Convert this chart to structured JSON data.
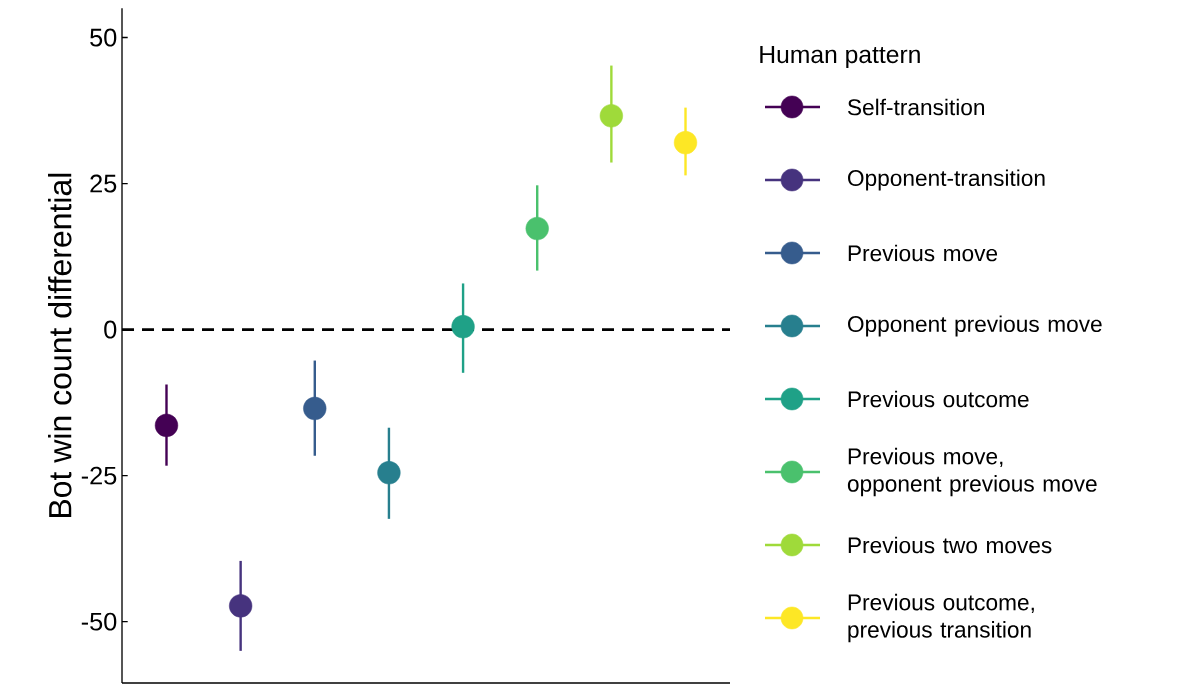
{
  "chart_data": {
    "type": "scatter",
    "ylabel": "Bot win count differential",
    "legend_title": "Human pattern",
    "categories": [
      null,
      null,
      null,
      null,
      null,
      null,
      null,
      null
    ],
    "ylim": [
      -60.5,
      55
    ],
    "yticks": [
      -50,
      -25,
      0,
      25,
      50
    ],
    "tick_labels": "y",
    "legend": "right",
    "marker": "circle",
    "ref_lines": [
      {
        "axis": "y",
        "value": 0,
        "line_style": "dashed",
        "color": "#000000"
      }
    ],
    "series": [
      {
        "name": "Self-transition",
        "color": "#440154",
        "values": [
          -16.4,
          null,
          null,
          null,
          null,
          null,
          null,
          null
        ],
        "errors": [
          [
            -23.3,
            -9.4
          ],
          null,
          null,
          null,
          null,
          null,
          null,
          null
        ]
      },
      {
        "name": "Opponent-transition",
        "color": "#46337e",
        "values": [
          null,
          -47.3,
          null,
          null,
          null,
          null,
          null,
          null
        ],
        "errors": [
          null,
          [
            -55.0,
            -39.6
          ],
          null,
          null,
          null,
          null,
          null,
          null
        ]
      },
      {
        "name": "Previous move",
        "color": "#365c8d",
        "values": [
          null,
          null,
          -13.5,
          null,
          null,
          null,
          null,
          null
        ],
        "errors": [
          null,
          null,
          [
            -21.6,
            -5.3
          ],
          null,
          null,
          null,
          null,
          null
        ]
      },
      {
        "name": "Opponent previous move",
        "color": "#277f8e",
        "values": [
          null,
          null,
          null,
          -24.5,
          null,
          null,
          null,
          null
        ],
        "errors": [
          null,
          null,
          null,
          [
            -32.4,
            -16.8
          ],
          null,
          null,
          null,
          null
        ]
      },
      {
        "name": "Previous outcome",
        "color": "#1fa187",
        "values": [
          null,
          null,
          null,
          null,
          0.5,
          null,
          null,
          null
        ],
        "errors": [
          null,
          null,
          null,
          null,
          [
            -7.4,
            7.9
          ],
          null,
          null,
          null
        ]
      },
      {
        "name": "Previous move, opponent previous move",
        "color": "#4ac16d",
        "values": [
          null,
          null,
          null,
          null,
          null,
          17.3,
          null,
          null
        ],
        "errors": [
          null,
          null,
          null,
          null,
          null,
          [
            10.1,
            24.7
          ],
          null,
          null
        ]
      },
      {
        "name": "Previous two moves",
        "color": "#9fda3a",
        "values": [
          null,
          null,
          null,
          null,
          null,
          null,
          36.6,
          null
        ],
        "errors": [
          null,
          null,
          null,
          null,
          null,
          null,
          [
            28.6,
            45.2
          ],
          null
        ]
      },
      {
        "name": "Previous outcome, previous transition",
        "color": "#fde725",
        "values": [
          null,
          null,
          null,
          null,
          null,
          null,
          null,
          32.0
        ],
        "errors": [
          null,
          null,
          null,
          null,
          null,
          null,
          null,
          [
            26.4,
            38.0
          ]
        ]
      }
    ]
  }
}
